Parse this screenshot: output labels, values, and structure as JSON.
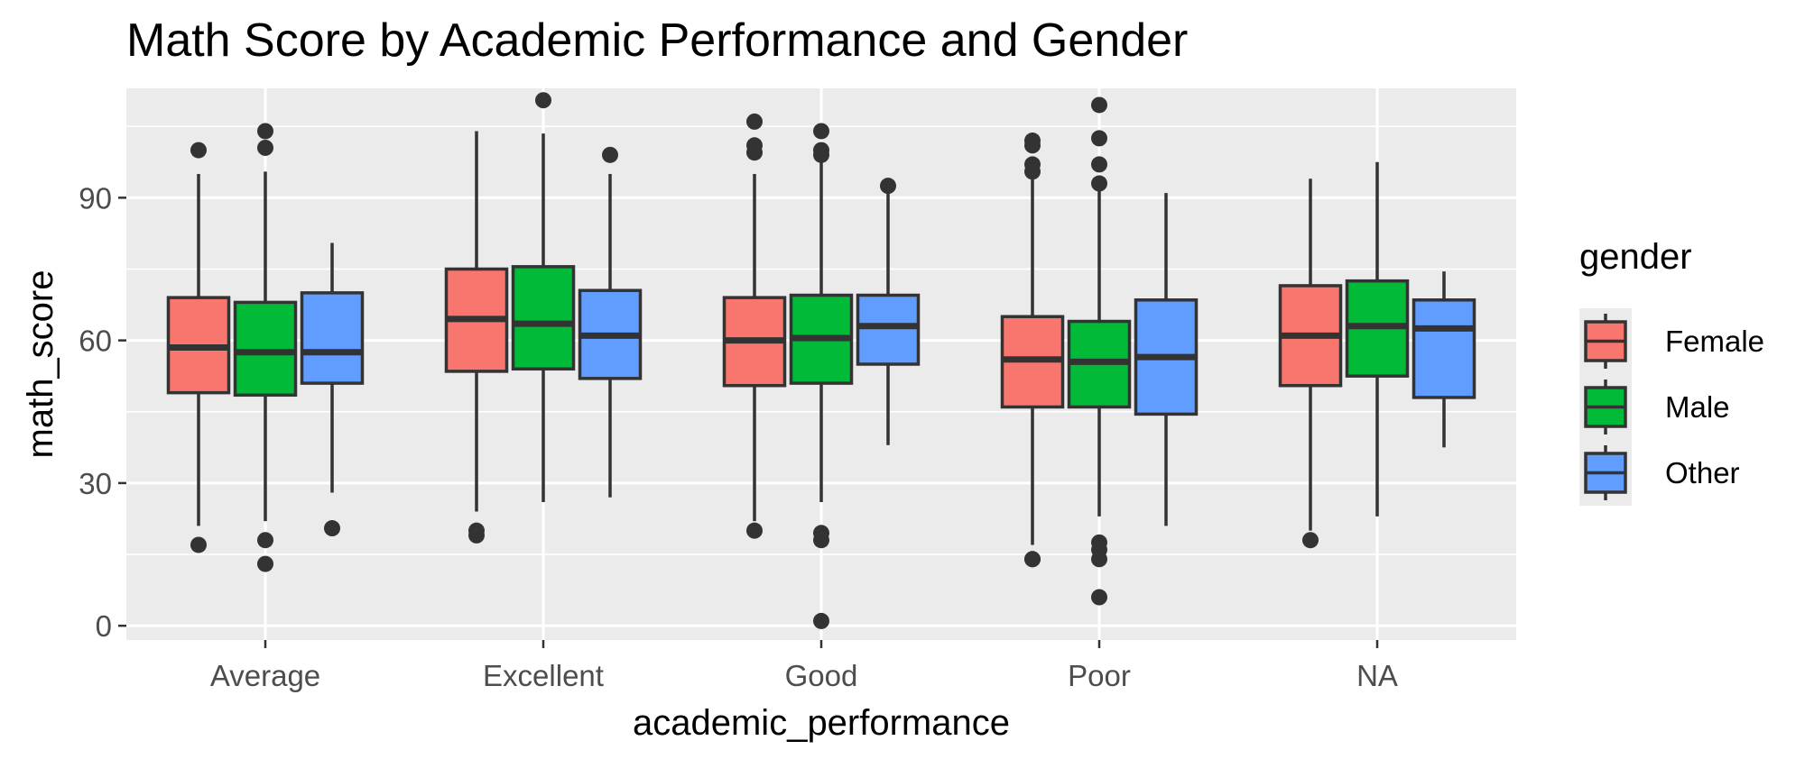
{
  "chart_data": {
    "type": "boxplot",
    "title": "Math Score by Academic Performance and Gender",
    "xlabel": "academic_performance",
    "ylabel": "math_score",
    "ylim": [
      -3,
      113
    ],
    "yticks": [
      0,
      30,
      60,
      90
    ],
    "grid": true,
    "legend": {
      "title": "gender",
      "position": "right"
    },
    "categories": [
      "Average",
      "Excellent",
      "Good",
      "Poor",
      "NA"
    ],
    "series": [
      {
        "name": "Female",
        "color": "#F8766D",
        "boxes": [
          {
            "whisker_low": 21,
            "q1": 49,
            "median": 58.5,
            "q3": 69,
            "whisker_high": 95,
            "outliers": [
              100,
              17
            ]
          },
          {
            "whisker_low": 24,
            "q1": 53.5,
            "median": 64.5,
            "q3": 75,
            "whisker_high": 104,
            "outliers": [
              20,
              19
            ]
          },
          {
            "whisker_low": 22,
            "q1": 50.5,
            "median": 60,
            "q3": 69,
            "whisker_high": 95,
            "outliers": [
              106,
              101,
              99.5,
              20
            ]
          },
          {
            "whisker_low": 17,
            "q1": 46,
            "median": 56,
            "q3": 65,
            "whisker_high": 95,
            "outliers": [
              102,
              101,
              97,
              95.5,
              14,
              14
            ]
          },
          {
            "whisker_low": 20,
            "q1": 50.5,
            "median": 61,
            "q3": 71.5,
            "whisker_high": 94,
            "outliers": [
              18
            ]
          }
        ]
      },
      {
        "name": "Male",
        "color": "#00BA38",
        "boxes": [
          {
            "whisker_low": 22,
            "q1": 48.5,
            "median": 57.5,
            "q3": 68,
            "whisker_high": 95.5,
            "outliers": [
              104,
              100.5,
              18,
              13
            ]
          },
          {
            "whisker_low": 26,
            "q1": 54,
            "median": 63.5,
            "q3": 75.5,
            "whisker_high": 103.5,
            "outliers": [
              110.5
            ]
          },
          {
            "whisker_low": 26,
            "q1": 51,
            "median": 60.5,
            "q3": 69.5,
            "whisker_high": 98,
            "outliers": [
              104,
              100,
              99,
              19.5,
              18,
              1
            ]
          },
          {
            "whisker_low": 23,
            "q1": 46,
            "median": 55.5,
            "q3": 64,
            "whisker_high": 91.5,
            "outliers": [
              109.5,
              102.5,
              97,
              93,
              17.5,
              16,
              14,
              6
            ]
          },
          {
            "whisker_low": 23,
            "q1": 52.5,
            "median": 63,
            "q3": 72.5,
            "whisker_high": 97.5,
            "outliers": []
          }
        ]
      },
      {
        "name": "Other",
        "color": "#619CFF",
        "boxes": [
          {
            "whisker_low": 28,
            "q1": 51,
            "median": 57.5,
            "q3": 70,
            "whisker_high": 80.5,
            "outliers": [
              20.5
            ]
          },
          {
            "whisker_low": 27,
            "q1": 52,
            "median": 61,
            "q3": 70.5,
            "whisker_high": 95,
            "outliers": [
              99
            ]
          },
          {
            "whisker_low": 38,
            "q1": 55,
            "median": 63,
            "q3": 69.5,
            "whisker_high": 92.5,
            "outliers": [
              92.5
            ]
          },
          {
            "whisker_low": 21,
            "q1": 44.5,
            "median": 56.5,
            "q3": 68.5,
            "whisker_high": 91,
            "outliers": []
          },
          {
            "whisker_low": 37.5,
            "q1": 48,
            "median": 62.5,
            "q3": 68.5,
            "whisker_high": 74.5,
            "outliers": []
          }
        ]
      }
    ]
  }
}
